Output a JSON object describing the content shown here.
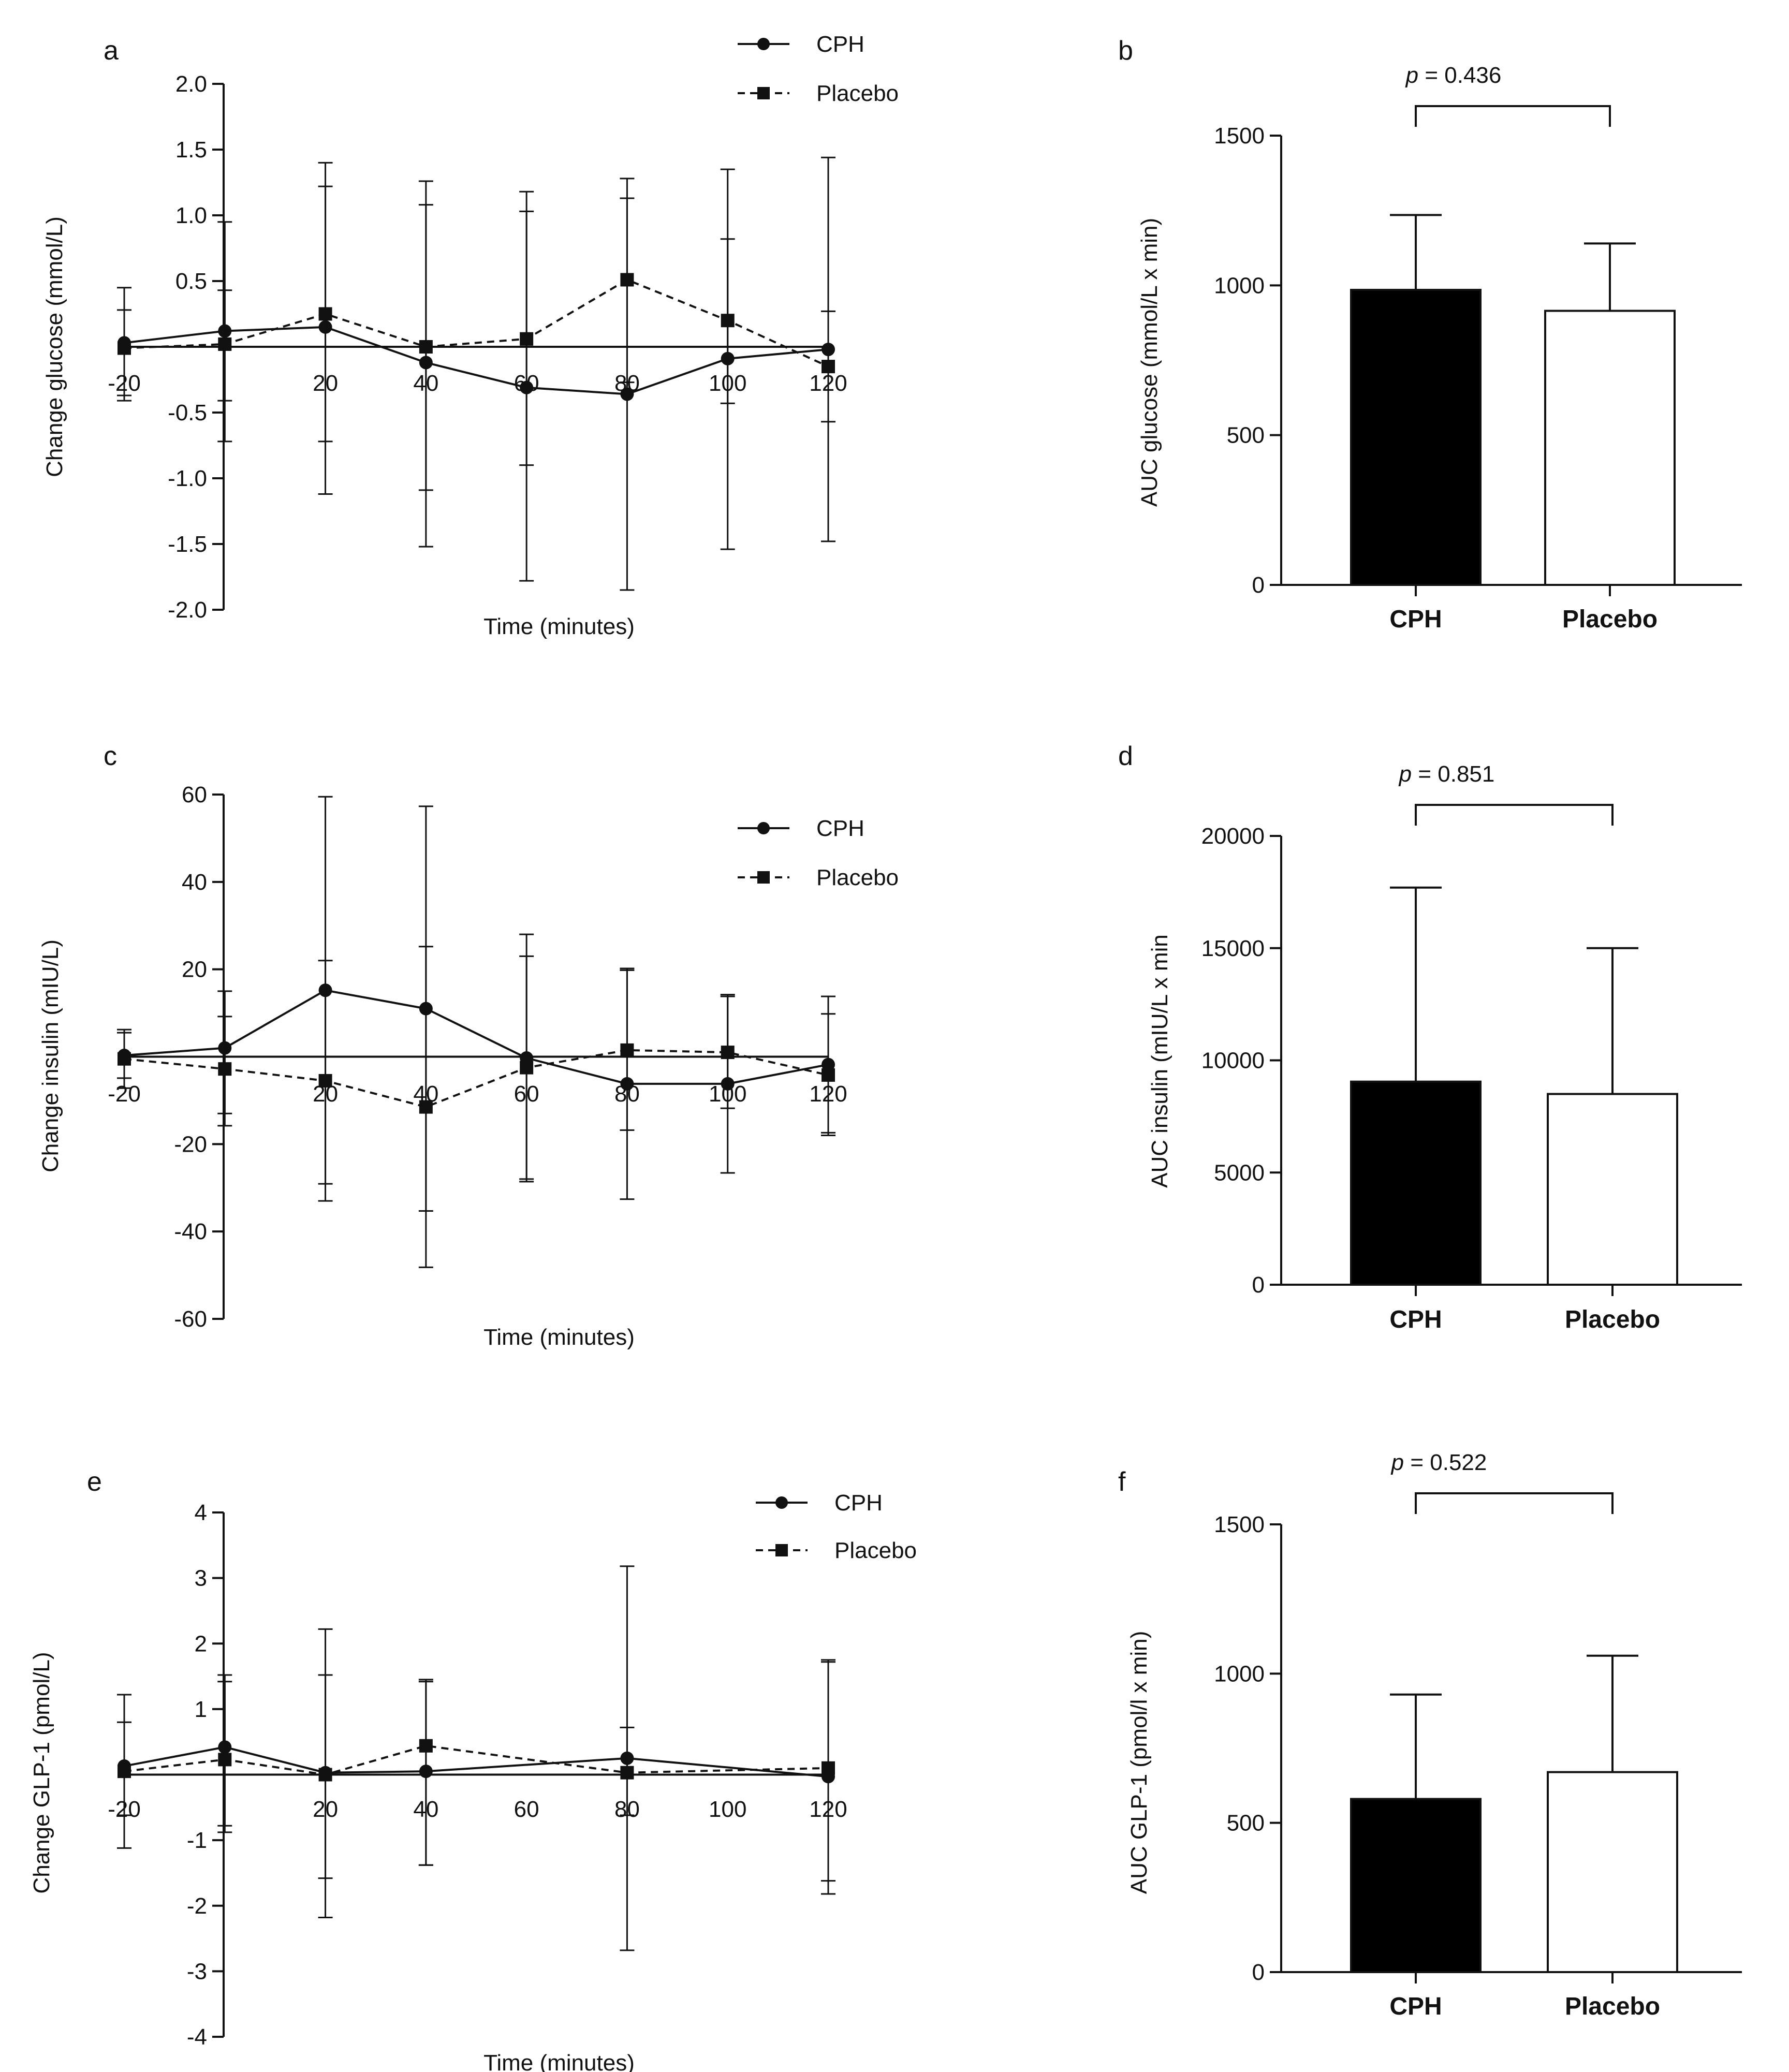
{
  "series_styles": {
    "CPH": {
      "marker": "circle",
      "dash": "none",
      "color": "#111111"
    },
    "Placebo": {
      "marker": "square",
      "dash": "dashed",
      "color": "#111111"
    }
  },
  "chart_data": [
    {
      "panel": "a",
      "type": "line",
      "xlabel": "Time (minutes)",
      "ylabel": "Change glucose (mmol/L)",
      "ylim": [
        -2.0,
        2.0
      ],
      "y_ticks": [
        "-2.0",
        "-1.5",
        "-1.0",
        "-0.5",
        "0.5",
        "1.0",
        "1.5",
        "2.0"
      ],
      "y_tick_values": [
        -2.0,
        -1.5,
        -1.0,
        -0.5,
        0.5,
        1.0,
        1.5,
        2.0
      ],
      "x_ticks": [
        "-20",
        "20",
        "40",
        "60",
        "80",
        "100",
        "120"
      ],
      "x_tick_values": [
        -20,
        20,
        40,
        60,
        80,
        100,
        120
      ],
      "xlim": [
        -20,
        120
      ],
      "x": [
        -20,
        0,
        20,
        40,
        60,
        80,
        100,
        120
      ],
      "series": [
        {
          "name": "CPH",
          "values": [
            0.03,
            0.12,
            0.15,
            -0.12,
            -0.31,
            -0.36,
            -0.09,
            -0.02
          ],
          "err_upper": [
            0.28,
            0.95,
            1.22,
            1.08,
            1.03,
            1.13,
            0.82,
            0.27
          ],
          "err_lower": [
            -0.37,
            -0.72,
            -1.12,
            -1.52,
            -1.78,
            -1.85,
            -1.54,
            -0.57
          ]
        },
        {
          "name": "Placebo",
          "values": [
            -0.01,
            0.02,
            0.25,
            0.0,
            0.06,
            0.51,
            0.2,
            -0.15
          ],
          "err_upper": [
            0.45,
            0.43,
            1.4,
            1.26,
            1.18,
            1.28,
            1.35,
            1.44
          ],
          "err_lower": [
            -0.41,
            -0.41,
            -0.72,
            -1.09,
            -0.9,
            -0.27,
            -0.43,
            -1.48
          ]
        }
      ],
      "legend": [
        "CPH",
        "Placebo"
      ]
    },
    {
      "panel": "b",
      "type": "bar",
      "categories": [
        "CPH",
        "Placebo"
      ],
      "values": [
        985,
        915
      ],
      "err_upper": [
        1235,
        1140
      ],
      "fills": [
        "#000000",
        "#ffffff"
      ],
      "ylabel": "AUC glucose (mmol/L x min)",
      "ylim": [
        0,
        1500
      ],
      "y_ticks": [
        "0",
        "500",
        "1000",
        "1500"
      ],
      "y_tick_values": [
        0,
        500,
        1000,
        1500
      ],
      "p_value": "p = 0.436",
      "p_prefix": "p",
      "p_rest": " = 0.436"
    },
    {
      "panel": "c",
      "type": "line",
      "xlabel": "Time (minutes)",
      "ylabel": "Change insulin (mIU/L)",
      "ylim": [
        -60,
        60
      ],
      "y_ticks": [
        "-60",
        "-40",
        "-20",
        "20",
        "40",
        "60"
      ],
      "y_tick_values": [
        -60,
        -40,
        -20,
        20,
        40,
        60
      ],
      "x_ticks": [
        "-20",
        "20",
        "40",
        "60",
        "80",
        "100",
        "120"
      ],
      "x_tick_values": [
        -20,
        20,
        40,
        60,
        80,
        100,
        120
      ],
      "xlim": [
        -20,
        120
      ],
      "x": [
        -20,
        0,
        20,
        40,
        60,
        80,
        100,
        120
      ],
      "series": [
        {
          "name": "CPH",
          "values": [
            0.3,
            2,
            15.2,
            11,
            -0.3,
            -6.2,
            -6.2,
            -1.8
          ],
          "err_upper": [
            5.5,
            15,
            59.5,
            57.3,
            28,
            20.2,
            14.2,
            13.8
          ],
          "err_lower": [
            -4.9,
            -13,
            -29.1,
            -35.3,
            -28.6,
            -32.6,
            -26.6,
            -17.4
          ]
        },
        {
          "name": "Placebo",
          "values": [
            -0.5,
            -2.8,
            -5.5,
            -11.5,
            -2.5,
            1.5,
            1.0,
            -4.2
          ],
          "err_upper": [
            6.2,
            9.2,
            22,
            25.2,
            23,
            19.8,
            13.8,
            9.8
          ],
          "err_lower": [
            -7.2,
            -15.8,
            -33,
            -48.2,
            -28,
            -16.8,
            -11.8,
            -18
          ]
        }
      ],
      "legend": [
        "CPH",
        "Placebo"
      ]
    },
    {
      "panel": "d",
      "type": "bar",
      "categories": [
        "CPH",
        "Placebo"
      ],
      "values": [
        9050,
        8500
      ],
      "err_upper": [
        17700,
        15000
      ],
      "fills": [
        "#000000",
        "#ffffff"
      ],
      "ylabel": "AUC insulin (mIU/L x min",
      "ylim": [
        0,
        20000
      ],
      "y_ticks": [
        "0",
        "5000",
        "10000",
        "15000",
        "20000"
      ],
      "y_tick_values": [
        0,
        5000,
        10000,
        15000,
        20000
      ],
      "p_value": "p = 0.851",
      "p_prefix": "p",
      "p_rest": " = 0.851"
    },
    {
      "panel": "e",
      "type": "line",
      "xlabel": "Time (minutes)",
      "ylabel": "Change GLP-1 (pmol/L)",
      "ylim": [
        -4,
        4
      ],
      "y_ticks": [
        "-4",
        "-3",
        "-2",
        "-1",
        "1",
        "2",
        "3",
        "4"
      ],
      "y_tick_values": [
        -4,
        -3,
        -2,
        -1,
        1,
        2,
        3,
        4
      ],
      "x_ticks": [
        "-20",
        "20",
        "40",
        "60",
        "80",
        "100",
        "120"
      ],
      "x_tick_values": [
        -20,
        20,
        40,
        60,
        80,
        100,
        120
      ],
      "xlim": [
        -20,
        120
      ],
      "x": [
        -20,
        0,
        20,
        40,
        60,
        80,
        100,
        120
      ],
      "series": [
        {
          "name": "CPH",
          "values": [
            0.13,
            0.42,
            0.03,
            0.05,
            null,
            0.25,
            null,
            -0.03
          ],
          "err_upper": [
            1.22,
            1.52,
            2.22,
            1.45,
            null,
            3.18,
            null,
            1.75
          ],
          "err_lower": [
            -1.12,
            -0.88,
            -2.18,
            -1.38,
            null,
            -2.68,
            null,
            -1.82
          ]
        },
        {
          "name": "Placebo",
          "values": [
            0.05,
            0.23,
            0.0,
            0.44,
            null,
            0.03,
            null,
            0.1
          ],
          "err_upper": [
            0.8,
            1.42,
            1.52,
            1.42,
            null,
            0.72,
            null,
            1.72
          ],
          "err_lower": [
            -0.62,
            -0.78,
            -1.58,
            -1.38,
            null,
            -0.62,
            null,
            -1.62
          ]
        }
      ],
      "legend": [
        "CPH",
        "Placebo"
      ]
    },
    {
      "panel": "f",
      "type": "bar",
      "categories": [
        "CPH",
        "Placebo"
      ],
      "values": [
        580,
        670
      ],
      "err_upper": [
        930,
        1060
      ],
      "fills": [
        "#000000",
        "#ffffff"
      ],
      "ylabel": "AUC GLP-1 (pmol/l x min)",
      "ylim": [
        0,
        1500
      ],
      "y_ticks": [
        "0",
        "500",
        "1000",
        "1500"
      ],
      "y_tick_values": [
        0,
        500,
        1000,
        1500
      ],
      "p_value": "p = 0.522",
      "p_prefix": "p",
      "p_rest": " = 0.522"
    }
  ]
}
